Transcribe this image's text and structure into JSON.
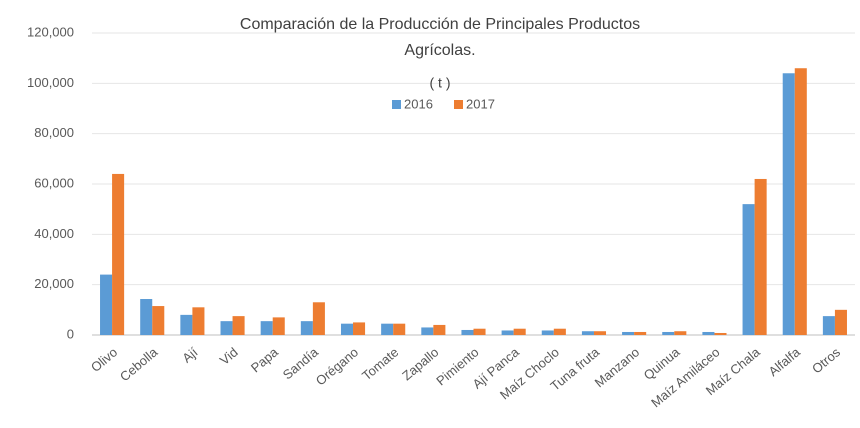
{
  "chart_data": {
    "type": "bar",
    "title": "Comparación de la Producción de Principales Productos Agrícolas.",
    "subtitle": "( t )",
    "categories": [
      "Olivo",
      "Cebolla",
      "Ají",
      "Vid",
      "Papa",
      "Sandía",
      "Orégano",
      "Tomate",
      "Zapallo",
      "Pimiento",
      "Ají Panca",
      "Maíz Choclo",
      "Tuna fruta",
      "Manzano",
      "Quinua",
      "Maíz Amiláceo",
      "Maíz Chala",
      "Alfalfa",
      "Otros"
    ],
    "series": [
      {
        "name": "2016",
        "color": "#5b9bd5",
        "values": [
          24000,
          14300,
          8000,
          5500,
          5500,
          5500,
          4500,
          4500,
          3000,
          2000,
          1800,
          1800,
          1500,
          1200,
          1200,
          1200,
          52000,
          104000,
          7500
        ]
      },
      {
        "name": "2017",
        "color": "#ed7d31",
        "values": [
          64000,
          11500,
          11000,
          7500,
          7000,
          13000,
          5000,
          4500,
          4000,
          2500,
          2500,
          2500,
          1500,
          1200,
          1500,
          800,
          62000,
          106000,
          10000
        ]
      }
    ],
    "ylim": [
      0,
      120000
    ],
    "yticks": [
      0,
      {
        "value": 20000,
        "label": "20,000"
      },
      {
        "value": 40000,
        "label": "40,000"
      },
      {
        "value": 60000,
        "label": "60,000"
      },
      {
        "value": 80000,
        "label": "80,000"
      },
      {
        "value": 100000,
        "label": "100,000"
      },
      {
        "value": 120000,
        "label": "120,000"
      }
    ],
    "grid": true,
    "legend": "top"
  }
}
